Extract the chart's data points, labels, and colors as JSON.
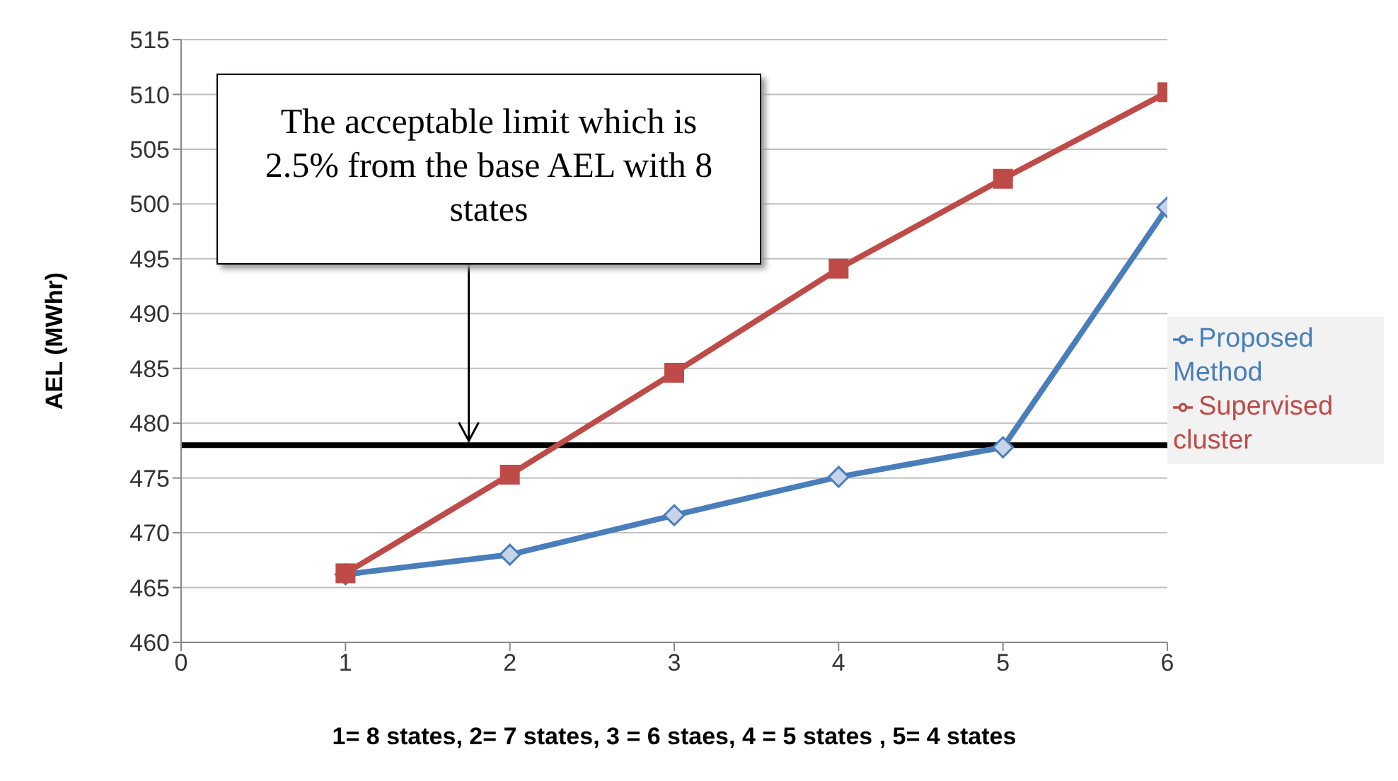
{
  "chart_data": {
    "type": "line",
    "xlabel": "1= 8 states, 2= 7 states, 3 = 6 staes, 4 = 5 states , 5= 4 states",
    "ylabel": "AEL (MWhr)",
    "x": [
      1,
      2,
      3,
      4,
      5,
      6
    ],
    "series": [
      {
        "name": "Proposed Method",
        "color": "#4a7ebb",
        "marker": "diamond",
        "values": [
          466.2,
          468,
          471.6,
          475.1,
          477.8,
          499.7
        ]
      },
      {
        "name": "Supervised cluster",
        "color": "#be4b48",
        "marker": "square",
        "values": [
          466.3,
          475.3,
          484.6,
          494.1,
          502.3,
          510.2
        ]
      }
    ],
    "xlim": [
      0,
      6
    ],
    "xticks": [
      0,
      1,
      2,
      3,
      4,
      5,
      6
    ],
    "ylim": [
      460,
      515
    ],
    "yticks": [
      460,
      465,
      470,
      475,
      480,
      485,
      490,
      495,
      500,
      505,
      510,
      515
    ],
    "grid": "y",
    "legend": "right",
    "ref_lines": [
      {
        "axis": "y",
        "value": 478,
        "color": "#000000"
      }
    ],
    "annotations": [
      {
        "text": "The acceptable limit which is 2.5% from the base AEL with 8 states",
        "x": 1.75,
        "y": 478
      }
    ]
  }
}
